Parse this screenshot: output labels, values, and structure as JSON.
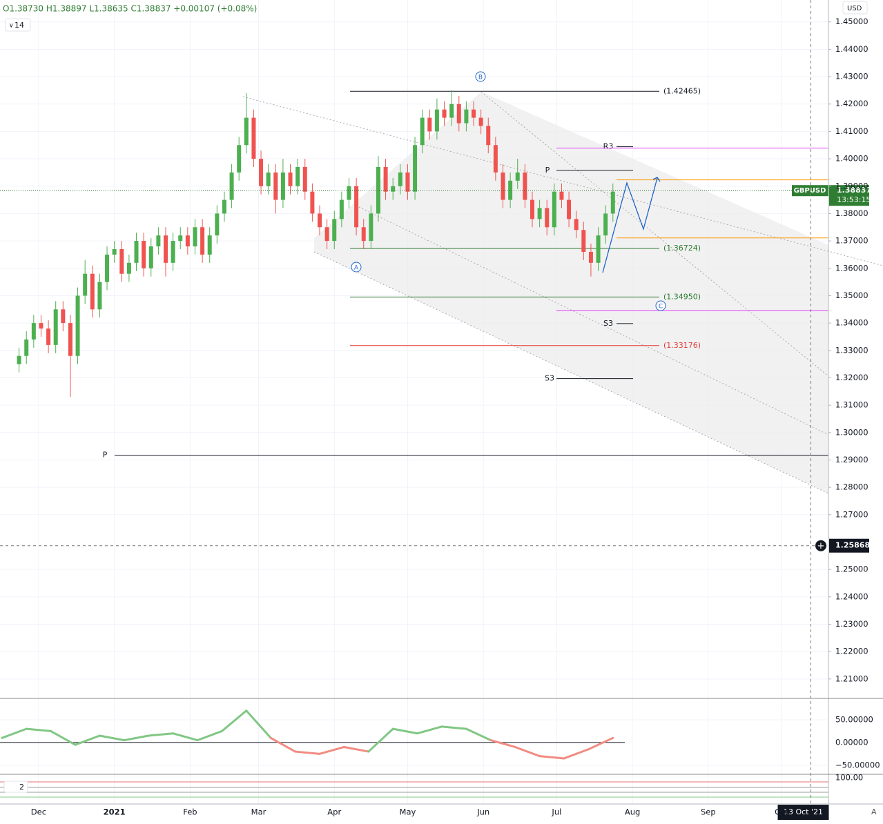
{
  "ohlc_header": "O1.38730 H1.38897 L1.38635 C1.38837 +0.00107 (+0.08%)",
  "interval": "14",
  "currency": "USD",
  "symbol": "GBPUSD",
  "countdown": "13:53:15",
  "indicator_count": "2",
  "auto_button": "A",
  "wave_labels": [
    "A",
    "B",
    "C"
  ],
  "chart_data": {
    "type": "candlestick",
    "up_color": "#4caf50",
    "down_color": "#ef5350",
    "xlim": [
      -15.8,
      323.2
    ],
    "ylim": [
      1.2029,
      1.458
    ],
    "xticks": [
      {
        "value": 0,
        "label": "Dec"
      },
      {
        "value": 31,
        "label": "2021"
      },
      {
        "value": 62,
        "label": "Feb"
      },
      {
        "value": 90,
        "label": "Mar"
      },
      {
        "value": 121,
        "label": "Apr"
      },
      {
        "value": 151,
        "label": "May"
      },
      {
        "value": 182,
        "label": "Jun"
      },
      {
        "value": 212,
        "label": "Jul"
      },
      {
        "value": 243,
        "label": "Aug"
      },
      {
        "value": 274,
        "label": "Sep"
      },
      {
        "value": 304,
        "label": "Oct"
      }
    ],
    "yticks": [
      {
        "value": 1.45,
        "label": "1.45000"
      },
      {
        "value": 1.44,
        "label": "1.44000"
      },
      {
        "value": 1.43,
        "label": "1.43000"
      },
      {
        "value": 1.42,
        "label": "1.42000"
      },
      {
        "value": 1.41,
        "label": "1.41000"
      },
      {
        "value": 1.4,
        "label": "1.40000"
      },
      {
        "value": 1.39,
        "label": "1.39000"
      },
      {
        "value": 1.38,
        "label": "1.38000"
      },
      {
        "value": 1.37,
        "label": "1.37000"
      },
      {
        "value": 1.36,
        "label": "1.36000"
      },
      {
        "value": 1.35,
        "label": "1.35000"
      },
      {
        "value": 1.34,
        "label": "1.34000"
      },
      {
        "value": 1.33,
        "label": "1.33000"
      },
      {
        "value": 1.32,
        "label": "1.32000"
      },
      {
        "value": 1.31,
        "label": "1.31000"
      },
      {
        "value": 1.3,
        "label": "1.30000"
      },
      {
        "value": 1.29,
        "label": "1.29000"
      },
      {
        "value": 1.28,
        "label": "1.28000"
      },
      {
        "value": 1.27,
        "label": "1.27000"
      },
      {
        "value": 1.25,
        "label": "1.25000"
      },
      {
        "value": 1.24,
        "label": "1.24000"
      },
      {
        "value": 1.23,
        "label": "1.23000"
      },
      {
        "value": 1.22,
        "label": "1.22000"
      },
      {
        "value": 1.21,
        "label": "1.21000"
      }
    ],
    "grid": true,
    "x": [
      -8,
      -5,
      -2,
      1,
      4,
      7,
      10,
      13,
      16,
      19,
      22,
      25,
      28,
      31,
      34,
      37,
      40,
      43,
      46,
      49,
      52,
      55,
      58,
      61,
      64,
      67,
      70,
      73,
      76,
      79,
      82,
      85,
      88,
      91,
      94,
      97,
      100,
      103,
      106,
      109,
      112,
      115,
      118,
      121,
      124,
      127,
      130,
      133,
      136,
      139,
      142,
      145,
      148,
      151,
      154,
      157,
      160,
      163,
      166,
      169,
      172,
      175,
      178,
      181,
      184,
      187,
      190,
      193,
      196,
      199,
      202,
      205,
      208,
      211,
      214,
      217,
      220,
      223,
      226,
      229,
      232,
      235
    ],
    "open": [
      1.325,
      1.328,
      1.334,
      1.34,
      1.338,
      1.332,
      1.345,
      1.34,
      1.328,
      1.35,
      1.358,
      1.345,
      1.355,
      1.365,
      1.367,
      1.358,
      1.362,
      1.37,
      1.36,
      1.368,
      1.372,
      1.362,
      1.37,
      1.372,
      1.368,
      1.375,
      1.365,
      1.372,
      1.38,
      1.385,
      1.395,
      1.405,
      1.415,
      1.4,
      1.39,
      1.395,
      1.385,
      1.395,
      1.39,
      1.397,
      1.388,
      1.38,
      1.375,
      1.37,
      1.378,
      1.385,
      1.39,
      1.375,
      1.37,
      1.38,
      1.397,
      1.388,
      1.39,
      1.395,
      1.388,
      1.405,
      1.415,
      1.41,
      1.418,
      1.415,
      1.42,
      1.413,
      1.418,
      1.415,
      1.412,
      1.405,
      1.395,
      1.385,
      1.392,
      1.395,
      1.385,
      1.378,
      1.382,
      1.375,
      1.388,
      1.385,
      1.378,
      1.374,
      1.366,
      1.362,
      1.372,
      1.38
    ],
    "high": [
      1.331,
      1.337,
      1.343,
      1.343,
      1.341,
      1.348,
      1.348,
      1.343,
      1.353,
      1.363,
      1.361,
      1.358,
      1.368,
      1.37,
      1.37,
      1.365,
      1.373,
      1.373,
      1.371,
      1.375,
      1.375,
      1.373,
      1.375,
      1.375,
      1.378,
      1.378,
      1.375,
      1.383,
      1.388,
      1.398,
      1.408,
      1.424,
      1.418,
      1.403,
      1.398,
      1.398,
      1.4,
      1.398,
      1.4,
      1.4,
      1.391,
      1.383,
      1.378,
      1.381,
      1.388,
      1.393,
      1.393,
      1.378,
      1.383,
      1.401,
      1.4,
      1.393,
      1.398,
      1.398,
      1.408,
      1.418,
      1.418,
      1.422,
      1.421,
      1.425,
      1.423,
      1.421,
      1.421,
      1.418,
      1.415,
      1.408,
      1.398,
      1.395,
      1.4,
      1.398,
      1.388,
      1.385,
      1.385,
      1.391,
      1.391,
      1.388,
      1.381,
      1.377,
      1.369,
      1.375,
      1.383,
      1.391
    ],
    "low": [
      1.322,
      1.325,
      1.331,
      1.335,
      1.329,
      1.329,
      1.337,
      1.313,
      1.325,
      1.347,
      1.342,
      1.342,
      1.352,
      1.362,
      1.355,
      1.355,
      1.359,
      1.357,
      1.357,
      1.365,
      1.357,
      1.359,
      1.367,
      1.365,
      1.365,
      1.362,
      1.362,
      1.369,
      1.377,
      1.382,
      1.392,
      1.402,
      1.397,
      1.387,
      1.387,
      1.38,
      1.382,
      1.387,
      1.387,
      1.385,
      1.377,
      1.372,
      1.367,
      1.367,
      1.375,
      1.382,
      1.372,
      1.367,
      1.367,
      1.377,
      1.385,
      1.385,
      1.387,
      1.385,
      1.385,
      1.402,
      1.407,
      1.407,
      1.412,
      1.412,
      1.41,
      1.41,
      1.412,
      1.409,
      1.402,
      1.392,
      1.382,
      1.382,
      1.389,
      1.382,
      1.375,
      1.375,
      1.372,
      1.372,
      1.382,
      1.375,
      1.371,
      1.363,
      1.357,
      1.359,
      1.369,
      1.377
    ],
    "close": [
      1.328,
      1.334,
      1.34,
      1.338,
      1.332,
      1.345,
      1.34,
      1.328,
      1.35,
      1.358,
      1.345,
      1.355,
      1.365,
      1.367,
      1.358,
      1.362,
      1.37,
      1.36,
      1.368,
      1.372,
      1.362,
      1.37,
      1.372,
      1.368,
      1.375,
      1.365,
      1.372,
      1.38,
      1.385,
      1.395,
      1.405,
      1.415,
      1.4,
      1.39,
      1.395,
      1.385,
      1.395,
      1.39,
      1.397,
      1.388,
      1.38,
      1.375,
      1.37,
      1.378,
      1.385,
      1.39,
      1.375,
      1.37,
      1.38,
      1.397,
      1.388,
      1.39,
      1.395,
      1.388,
      1.405,
      1.415,
      1.41,
      1.418,
      1.415,
      1.42,
      1.413,
      1.418,
      1.415,
      1.412,
      1.405,
      1.395,
      1.385,
      1.392,
      1.395,
      1.385,
      1.378,
      1.382,
      1.375,
      1.388,
      1.385,
      1.378,
      1.374,
      1.366,
      1.362,
      1.372,
      1.38,
      1.388
    ],
    "last_price": 1.38837,
    "crosshair_price": 1.25868,
    "crosshair_date": {
      "value": 316,
      "label": "13 Oct '21"
    },
    "fib_levels": {
      "values": [
        1.42465,
        1.36724,
        1.3495,
        1.33176
      ],
      "value_labels": [
        "(1.42465)",
        "(1.36724)",
        "(1.34950)",
        "(1.33176)"
      ],
      "colors": [
        "#131722",
        "#2e7d32",
        "#2e7d32",
        "#e53935"
      ]
    },
    "pivots": {
      "labels": [
        "R3",
        "P",
        "S3",
        "S3",
        "P"
      ],
      "values": [
        1.4044,
        1.3958,
        1.3398,
        1.3197,
        1.2917
      ]
    },
    "hlines": {
      "values": [
        1.4039,
        1.3446,
        1.3923,
        1.3711
      ],
      "colors": [
        "#e040fb",
        "#e040fb",
        "#ff9800",
        "#ff9800"
      ]
    }
  },
  "oscillator": {
    "type": "line",
    "ylim": [
      -70,
      97
    ],
    "yticks": [
      {
        "value": 50,
        "label": "50.00000"
      },
      {
        "value": 0,
        "label": "0.00000"
      },
      {
        "value": -50,
        "label": "−50.00000"
      }
    ],
    "up_color": "#81c784",
    "down_color": "#f28b82",
    "x": [
      -15,
      -5,
      5,
      15,
      25,
      35,
      45,
      55,
      65,
      75,
      85,
      95,
      105,
      115,
      125,
      135,
      145,
      155,
      165,
      175,
      185,
      195,
      205,
      215,
      225,
      235
    ],
    "values": [
      10,
      30,
      25,
      -5,
      15,
      5,
      15,
      20,
      5,
      25,
      70,
      10,
      -20,
      -25,
      -10,
      -20,
      30,
      20,
      35,
      30,
      5,
      -10,
      -30,
      -35,
      -15,
      10
    ]
  },
  "stochastic": {
    "type": "line",
    "ylim": [
      0,
      115
    ],
    "yticks": [
      {
        "value": 100,
        "label": "100.00"
      }
    ]
  }
}
